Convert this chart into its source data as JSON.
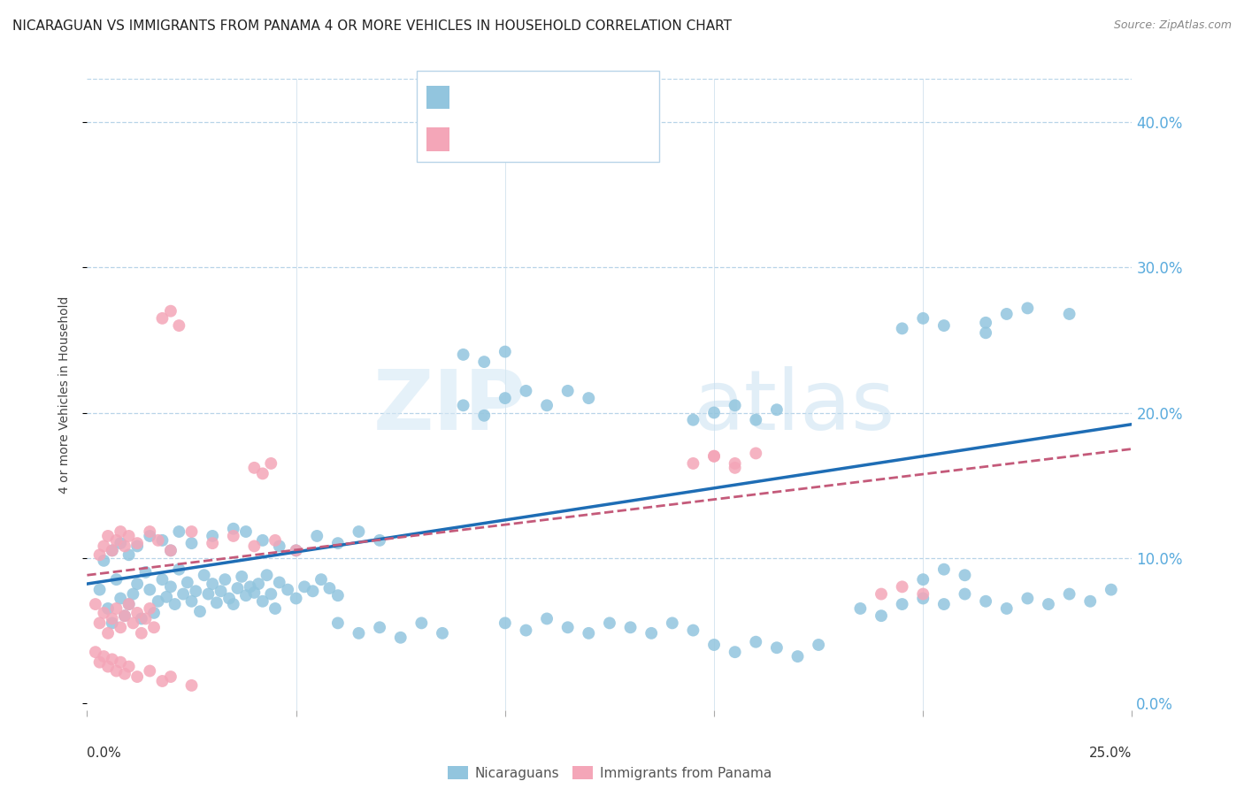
{
  "title": "NICARAGUAN VS IMMIGRANTS FROM PANAMA 4 OR MORE VEHICLES IN HOUSEHOLD CORRELATION CHART",
  "source": "Source: ZipAtlas.com",
  "ylabel": "4 or more Vehicles in Household",
  "ytick_values": [
    0.0,
    0.1,
    0.2,
    0.3,
    0.4
  ],
  "xlim": [
    0.0,
    0.25
  ],
  "ylim": [
    -0.005,
    0.43
  ],
  "blue_color": "#92c5de",
  "pink_color": "#f4a6b8",
  "line_blue": "#1e6db5",
  "line_pink": "#c45a7a",
  "watermark_zip": "ZIP",
  "watermark_atlas": "atlas",
  "blue_scatter": [
    [
      0.003,
      0.078
    ],
    [
      0.005,
      0.065
    ],
    [
      0.006,
      0.055
    ],
    [
      0.007,
      0.085
    ],
    [
      0.008,
      0.072
    ],
    [
      0.009,
      0.06
    ],
    [
      0.01,
      0.068
    ],
    [
      0.011,
      0.075
    ],
    [
      0.012,
      0.082
    ],
    [
      0.013,
      0.058
    ],
    [
      0.014,
      0.09
    ],
    [
      0.015,
      0.078
    ],
    [
      0.016,
      0.062
    ],
    [
      0.017,
      0.07
    ],
    [
      0.018,
      0.085
    ],
    [
      0.019,
      0.073
    ],
    [
      0.02,
      0.08
    ],
    [
      0.021,
      0.068
    ],
    [
      0.022,
      0.092
    ],
    [
      0.023,
      0.075
    ],
    [
      0.024,
      0.083
    ],
    [
      0.025,
      0.07
    ],
    [
      0.026,
      0.077
    ],
    [
      0.027,
      0.063
    ],
    [
      0.028,
      0.088
    ],
    [
      0.029,
      0.075
    ],
    [
      0.03,
      0.082
    ],
    [
      0.031,
      0.069
    ],
    [
      0.032,
      0.077
    ],
    [
      0.033,
      0.085
    ],
    [
      0.034,
      0.072
    ],
    [
      0.035,
      0.068
    ],
    [
      0.036,
      0.079
    ],
    [
      0.037,
      0.087
    ],
    [
      0.038,
      0.074
    ],
    [
      0.039,
      0.08
    ],
    [
      0.04,
      0.076
    ],
    [
      0.041,
      0.082
    ],
    [
      0.042,
      0.07
    ],
    [
      0.043,
      0.088
    ],
    [
      0.044,
      0.075
    ],
    [
      0.045,
      0.065
    ],
    [
      0.046,
      0.083
    ],
    [
      0.048,
      0.078
    ],
    [
      0.05,
      0.072
    ],
    [
      0.052,
      0.08
    ],
    [
      0.054,
      0.077
    ],
    [
      0.056,
      0.085
    ],
    [
      0.058,
      0.079
    ],
    [
      0.06,
      0.074
    ],
    [
      0.004,
      0.098
    ],
    [
      0.006,
      0.105
    ],
    [
      0.008,
      0.11
    ],
    [
      0.01,
      0.102
    ],
    [
      0.012,
      0.108
    ],
    [
      0.015,
      0.115
    ],
    [
      0.018,
      0.112
    ],
    [
      0.02,
      0.105
    ],
    [
      0.022,
      0.118
    ],
    [
      0.025,
      0.11
    ],
    [
      0.03,
      0.115
    ],
    [
      0.035,
      0.12
    ],
    [
      0.038,
      0.118
    ],
    [
      0.042,
      0.112
    ],
    [
      0.046,
      0.108
    ],
    [
      0.05,
      0.105
    ],
    [
      0.055,
      0.115
    ],
    [
      0.06,
      0.11
    ],
    [
      0.065,
      0.118
    ],
    [
      0.07,
      0.112
    ],
    [
      0.09,
      0.205
    ],
    [
      0.095,
      0.198
    ],
    [
      0.1,
      0.21
    ],
    [
      0.105,
      0.215
    ],
    [
      0.11,
      0.205
    ],
    [
      0.115,
      0.215
    ],
    [
      0.12,
      0.21
    ],
    [
      0.145,
      0.195
    ],
    [
      0.15,
      0.2
    ],
    [
      0.155,
      0.205
    ],
    [
      0.16,
      0.195
    ],
    [
      0.165,
      0.202
    ],
    [
      0.215,
      0.262
    ],
    [
      0.22,
      0.268
    ],
    [
      0.225,
      0.272
    ],
    [
      0.235,
      0.268
    ],
    [
      0.215,
      0.255
    ],
    [
      0.09,
      0.24
    ],
    [
      0.095,
      0.235
    ],
    [
      0.1,
      0.242
    ],
    [
      0.06,
      0.055
    ],
    [
      0.065,
      0.048
    ],
    [
      0.07,
      0.052
    ],
    [
      0.075,
      0.045
    ],
    [
      0.08,
      0.055
    ],
    [
      0.085,
      0.048
    ],
    [
      0.1,
      0.055
    ],
    [
      0.105,
      0.05
    ],
    [
      0.11,
      0.058
    ],
    [
      0.115,
      0.052
    ],
    [
      0.12,
      0.048
    ],
    [
      0.125,
      0.055
    ],
    [
      0.13,
      0.052
    ],
    [
      0.135,
      0.048
    ],
    [
      0.14,
      0.055
    ],
    [
      0.145,
      0.05
    ],
    [
      0.15,
      0.04
    ],
    [
      0.155,
      0.035
    ],
    [
      0.16,
      0.042
    ],
    [
      0.165,
      0.038
    ],
    [
      0.17,
      0.032
    ],
    [
      0.175,
      0.04
    ],
    [
      0.185,
      0.065
    ],
    [
      0.19,
      0.06
    ],
    [
      0.195,
      0.068
    ],
    [
      0.2,
      0.072
    ],
    [
      0.205,
      0.068
    ],
    [
      0.21,
      0.075
    ],
    [
      0.215,
      0.07
    ],
    [
      0.22,
      0.065
    ],
    [
      0.225,
      0.072
    ],
    [
      0.23,
      0.068
    ],
    [
      0.235,
      0.075
    ],
    [
      0.24,
      0.07
    ],
    [
      0.245,
      0.078
    ],
    [
      0.195,
      0.258
    ],
    [
      0.2,
      0.265
    ],
    [
      0.205,
      0.26
    ],
    [
      0.2,
      0.085
    ],
    [
      0.205,
      0.092
    ],
    [
      0.21,
      0.088
    ]
  ],
  "pink_scatter": [
    [
      0.002,
      0.068
    ],
    [
      0.003,
      0.055
    ],
    [
      0.004,
      0.062
    ],
    [
      0.005,
      0.048
    ],
    [
      0.006,
      0.058
    ],
    [
      0.007,
      0.065
    ],
    [
      0.008,
      0.052
    ],
    [
      0.009,
      0.06
    ],
    [
      0.01,
      0.068
    ],
    [
      0.011,
      0.055
    ],
    [
      0.012,
      0.062
    ],
    [
      0.013,
      0.048
    ],
    [
      0.014,
      0.058
    ],
    [
      0.015,
      0.065
    ],
    [
      0.016,
      0.052
    ],
    [
      0.003,
      0.102
    ],
    [
      0.004,
      0.108
    ],
    [
      0.005,
      0.115
    ],
    [
      0.006,
      0.105
    ],
    [
      0.007,
      0.112
    ],
    [
      0.008,
      0.118
    ],
    [
      0.009,
      0.108
    ],
    [
      0.01,
      0.115
    ],
    [
      0.012,
      0.11
    ],
    [
      0.015,
      0.118
    ],
    [
      0.017,
      0.112
    ],
    [
      0.02,
      0.105
    ],
    [
      0.025,
      0.118
    ],
    [
      0.03,
      0.11
    ],
    [
      0.035,
      0.115
    ],
    [
      0.04,
      0.108
    ],
    [
      0.045,
      0.112
    ],
    [
      0.05,
      0.105
    ],
    [
      0.018,
      0.265
    ],
    [
      0.02,
      0.27
    ],
    [
      0.022,
      0.26
    ],
    [
      0.04,
      0.162
    ],
    [
      0.042,
      0.158
    ],
    [
      0.044,
      0.165
    ],
    [
      0.15,
      0.17
    ],
    [
      0.155,
      0.165
    ],
    [
      0.16,
      0.172
    ],
    [
      0.002,
      0.035
    ],
    [
      0.003,
      0.028
    ],
    [
      0.004,
      0.032
    ],
    [
      0.005,
      0.025
    ],
    [
      0.006,
      0.03
    ],
    [
      0.007,
      0.022
    ],
    [
      0.008,
      0.028
    ],
    [
      0.009,
      0.02
    ],
    [
      0.01,
      0.025
    ],
    [
      0.012,
      0.018
    ],
    [
      0.015,
      0.022
    ],
    [
      0.018,
      0.015
    ],
    [
      0.02,
      0.018
    ],
    [
      0.025,
      0.012
    ],
    [
      0.145,
      0.165
    ],
    [
      0.15,
      0.17
    ],
    [
      0.155,
      0.162
    ],
    [
      0.19,
      0.075
    ],
    [
      0.195,
      0.08
    ],
    [
      0.2,
      0.075
    ]
  ],
  "blue_line_x": [
    0.0,
    0.25
  ],
  "blue_line_y": [
    0.082,
    0.192
  ],
  "pink_line_x": [
    0.0,
    0.25
  ],
  "pink_line_y": [
    0.088,
    0.175
  ]
}
